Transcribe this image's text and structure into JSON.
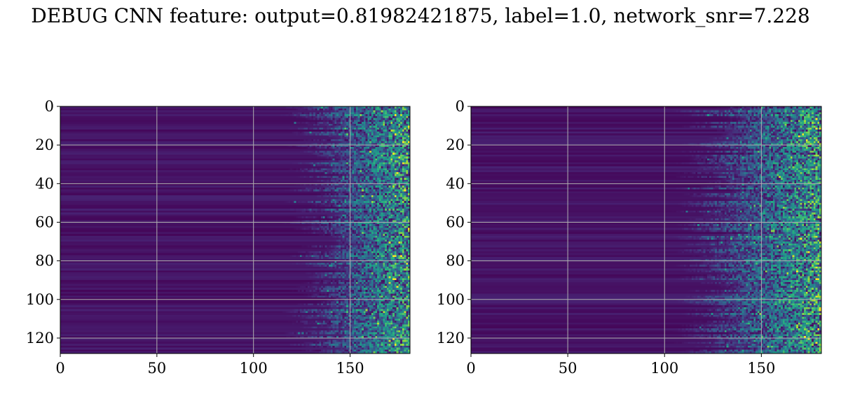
{
  "figure": {
    "title": "DEBUG CNN feature: output=0.81982421875, label=1.0, network_snr=7.228"
  },
  "chart_data": [
    {
      "type": "heatmap",
      "colormap": "viridis",
      "rows": 128,
      "cols": 181,
      "xlim": [
        0,
        181
      ],
      "ylim": [
        128,
        0
      ],
      "xticks": [
        0,
        50,
        100,
        150
      ],
      "yticks": [
        0,
        20,
        40,
        60,
        80,
        100,
        120
      ],
      "grid": true,
      "noise_onset_col": 128,
      "values_range": [
        0,
        1
      ]
    },
    {
      "type": "heatmap",
      "colormap": "viridis",
      "rows": 128,
      "cols": 181,
      "xlim": [
        0,
        181
      ],
      "ylim": [
        128,
        0
      ],
      "xticks": [
        0,
        50,
        100,
        150
      ],
      "yticks": [
        0,
        20,
        40,
        60,
        80,
        100,
        120
      ],
      "grid": true,
      "noise_onset_col": 118,
      "values_range": [
        0,
        1
      ]
    }
  ],
  "colors": {
    "viridis_low": "#440154",
    "viridis_high": "#fde725",
    "grid": "#b0b0b0"
  }
}
